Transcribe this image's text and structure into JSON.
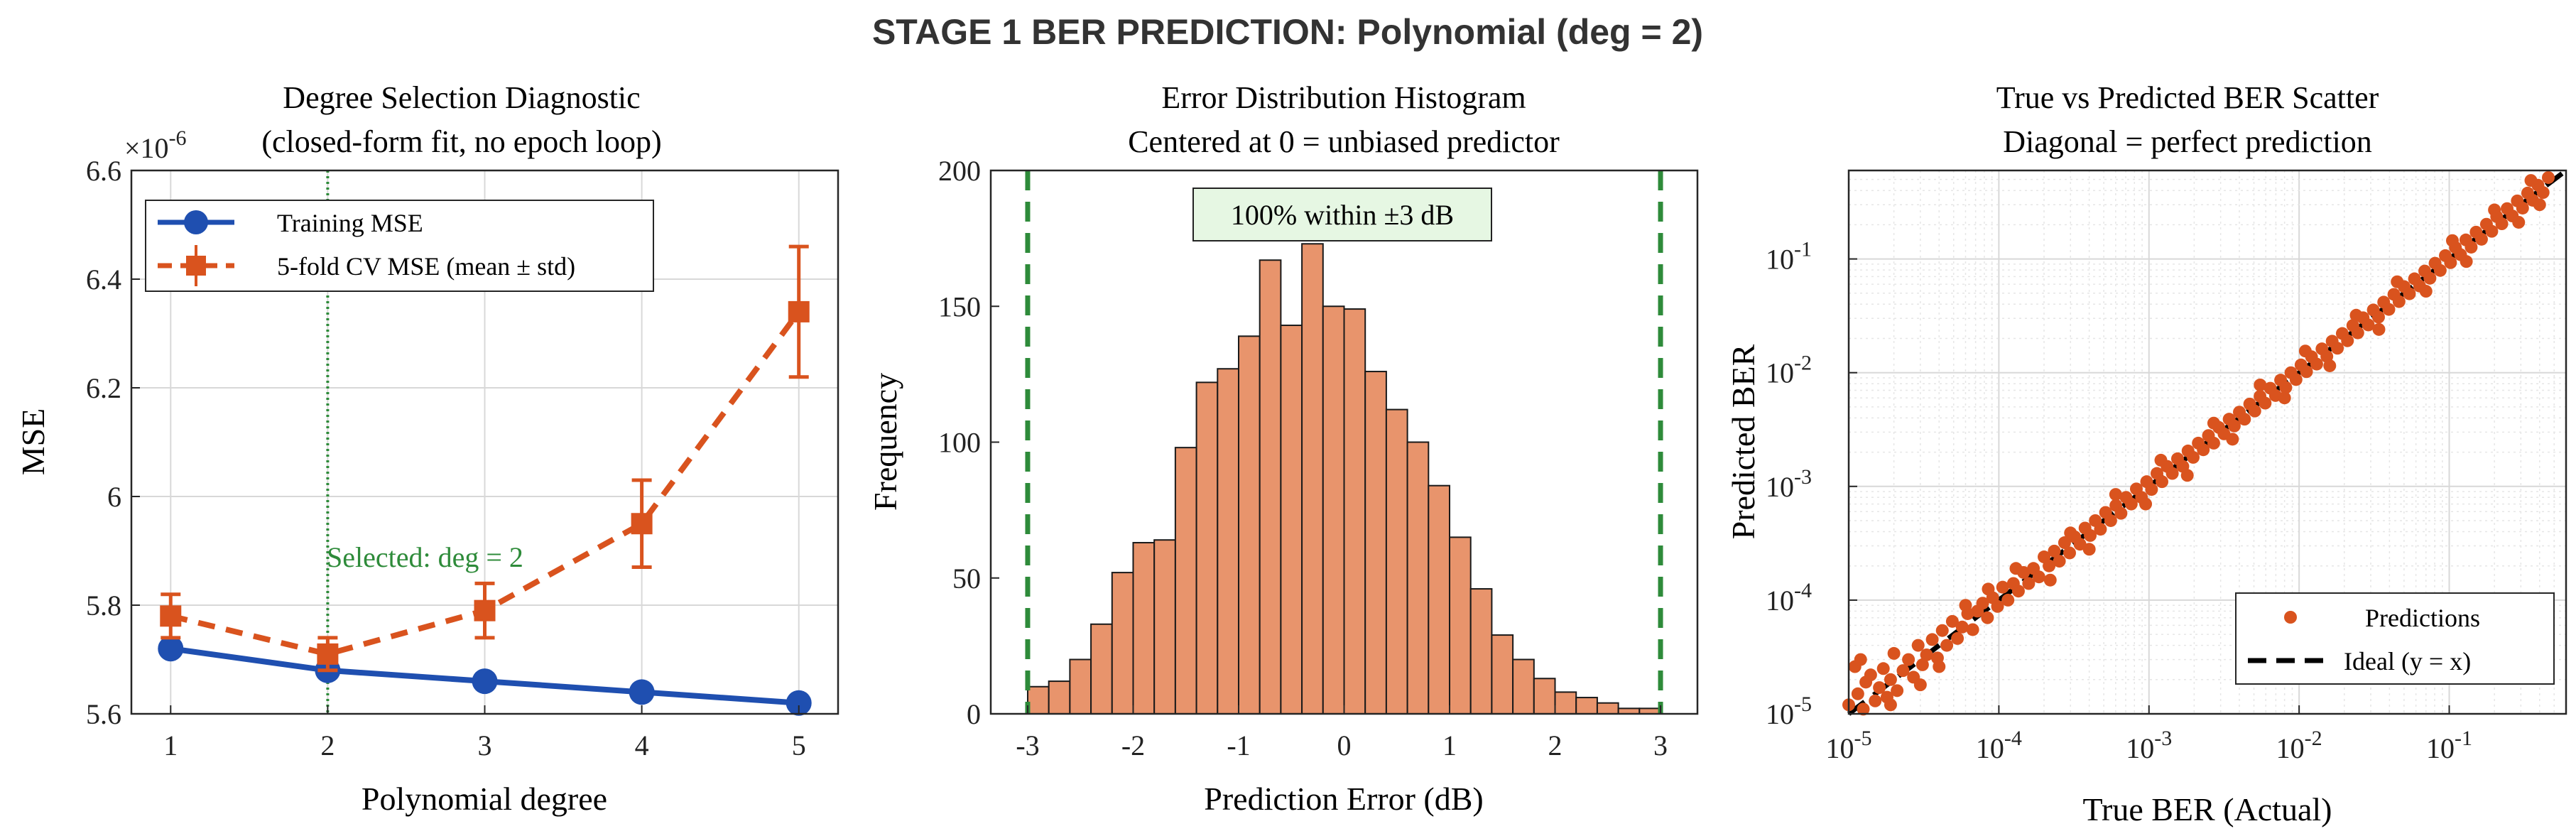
{
  "figure": {
    "suptitle": "STAGE 1 BER PREDICTION: Polynomial (deg = 2)"
  },
  "colors": {
    "blue": "#1f4fb0",
    "orange": "#d9531e",
    "green": "#2e8b3a",
    "hist_fill": "#e8946c",
    "annot_bg": "#e6f7e3"
  },
  "chart_data": [
    {
      "type": "line",
      "title_line1": "Degree Selection Diagnostic",
      "title_line2": "(closed-form fit, no epoch loop)",
      "xlabel": "Polynomial degree",
      "ylabel": "MSE",
      "exponent_label": "×10",
      "exponent_power": "-6",
      "xlim": [
        0.75,
        5.25
      ],
      "ylim": [
        5.6,
        6.6
      ],
      "xticks": [
        "1",
        "2",
        "3",
        "4",
        "5"
      ],
      "yticks": [
        "5.6",
        "5.8",
        "6",
        "6.2",
        "6.4",
        "6.6"
      ],
      "grid": true,
      "legend_position": "top-left",
      "series": [
        {
          "name": "Training MSE",
          "x": [
            1,
            2,
            3,
            4,
            5
          ],
          "values": [
            5.72,
            5.68,
            5.66,
            5.64,
            5.62
          ]
        },
        {
          "name": "5-fold CV MSE (mean ± std)",
          "x": [
            1,
            2,
            3,
            4,
            5
          ],
          "values": [
            5.78,
            5.71,
            5.79,
            5.95,
            6.34
          ],
          "std": [
            0.04,
            0.03,
            0.05,
            0.08,
            0.12
          ]
        }
      ],
      "selected_degree": 2,
      "selected_label": "Selected: deg = 2"
    },
    {
      "type": "bar",
      "title_line1": "Error Distribution Histogram",
      "title_line2": "Centered at 0 = unbiased predictor",
      "xlabel": "Prediction Error (dB)",
      "ylabel": "Frequency",
      "xlim": [
        -3.35,
        3.35
      ],
      "ylim": [
        0,
        200
      ],
      "xticks": [
        "-3",
        "-2",
        "-1",
        "0",
        "1",
        "2",
        "3"
      ],
      "yticks": [
        "0",
        "50",
        "100",
        "150",
        "200"
      ],
      "grid": false,
      "bin_edges_start": -3.0,
      "bin_width": 0.2,
      "values": [
        10,
        12,
        20,
        33,
        52,
        63,
        64,
        98,
        122,
        127,
        139,
        167,
        143,
        173,
        150,
        149,
        126,
        112,
        100,
        84,
        65,
        46,
        29,
        20,
        13,
        8,
        6,
        4,
        2,
        2
      ],
      "threshold_lines": [
        -3,
        3
      ],
      "annotation": "100% within ±3 dB"
    },
    {
      "type": "scatter",
      "title_line1": "True vs Predicted BER Scatter",
      "title_line2": "Diagonal = perfect prediction",
      "xlabel": "True BER (Actual)",
      "ylabel": "Predicted BER",
      "xscale": "log",
      "yscale": "log",
      "xlim": [
        1e-05,
        0.6
      ],
      "ylim": [
        1e-05,
        0.6
      ],
      "xticks": [
        {
          "base": "10",
          "exp": "-5"
        },
        {
          "base": "10",
          "exp": "-4"
        },
        {
          "base": "10",
          "exp": "-3"
        },
        {
          "base": "10",
          "exp": "-2"
        },
        {
          "base": "10",
          "exp": "-1"
        }
      ],
      "yticks": [
        {
          "base": "10",
          "exp": "-5"
        },
        {
          "base": "10",
          "exp": "-4"
        },
        {
          "base": "10",
          "exp": "-3"
        },
        {
          "base": "10",
          "exp": "-2"
        },
        {
          "base": "10",
          "exp": "-1"
        }
      ],
      "grid": true,
      "legend_position": "bottom-right",
      "series": [
        {
          "name": "Predictions",
          "points": [
            [
              1e-05,
              1.2e-05
            ],
            [
              1.1e-05,
              2.6e-05
            ],
            [
              1.15e-05,
              1.5e-05
            ],
            [
              1.25e-05,
              1.1e-05
            ],
            [
              1.3e-05,
              1.9e-05
            ],
            [
              1.4e-05,
              2.2e-05
            ],
            [
              1.5e-05,
              1.3e-05
            ],
            [
              1.6e-05,
              1.7e-05
            ],
            [
              1.7e-05,
              2.5e-05
            ],
            [
              1.8e-05,
              1.4e-05
            ],
            [
              1.9e-05,
              2e-05
            ],
            [
              2e-05,
              3.4e-05
            ],
            [
              2.1e-05,
              1.6e-05
            ],
            [
              2.3e-05,
              2.4e-05
            ],
            [
              2.5e-05,
              3e-05
            ],
            [
              2.7e-05,
              2.1e-05
            ],
            [
              2.9e-05,
              4e-05
            ],
            [
              3.1e-05,
              2.7e-05
            ],
            [
              3.3e-05,
              3.3e-05
            ],
            [
              3.6e-05,
              4.5e-05
            ],
            [
              3.9e-05,
              3.1e-05
            ],
            [
              4.2e-05,
              5.4e-05
            ],
            [
              4.5e-05,
              4e-05
            ],
            [
              4.9e-05,
              6.5e-05
            ],
            [
              5.3e-05,
              4.6e-05
            ],
            [
              5.7e-05,
              5.8e-05
            ],
            [
              6.2e-05,
              7.6e-05
            ],
            [
              6.7e-05,
              5.5e-05
            ],
            [
              7.2e-05,
              8e-05
            ],
            [
              7.8e-05,
              9.4e-05
            ],
            [
              8.4e-05,
              7e-05
            ],
            [
              9.1e-05,
              0.000105
            ],
            [
              9.8e-05,
              8.8e-05
            ],
            [
              0.000106,
              0.00013
            ],
            [
              0.000115,
              0.0001
            ],
            [
              0.000125,
              0.00014
            ],
            [
              0.000135,
              0.00012
            ],
            [
              0.000146,
              0.000175
            ],
            [
              0.000158,
              0.00014
            ],
            [
              0.00017,
              0.00019
            ],
            [
              0.000185,
              0.00016
            ],
            [
              0.0002,
              0.00024
            ],
            [
              0.000216,
              0.0002
            ],
            [
              0.000234,
              0.00027
            ],
            [
              0.000253,
              0.00022
            ],
            [
              0.000274,
              0.00032
            ],
            [
              0.000296,
              0.00026
            ],
            [
              0.00032,
              0.00036
            ],
            [
              0.000347,
              0.00031
            ],
            [
              0.000375,
              0.00043
            ],
            [
              0.000406,
              0.00037
            ],
            [
              0.000439,
              0.0005
            ],
            [
              0.000475,
              0.00042
            ],
            [
              0.000514,
              0.00059
            ],
            [
              0.000556,
              0.0005
            ],
            [
              0.000602,
              0.00068
            ],
            [
              0.000651,
              0.00058
            ],
            [
              0.000704,
              0.0008
            ],
            [
              0.000762,
              0.0007
            ],
            [
              0.000824,
              0.00095
            ],
            [
              0.000892,
              0.0008
            ],
            [
              0.000965,
              0.0011
            ],
            [
              0.00104,
              0.00094
            ],
            [
              0.00113,
              0.0013
            ],
            [
              0.00122,
              0.0011
            ],
            [
              0.00132,
              0.0015
            ],
            [
              0.00143,
              0.0013
            ],
            [
              0.00155,
              0.00175
            ],
            [
              0.00168,
              0.0015
            ],
            [
              0.00182,
              0.00205
            ],
            [
              0.00197,
              0.0018
            ],
            [
              0.00213,
              0.0024
            ],
            [
              0.0023,
              0.0021
            ],
            [
              0.00249,
              0.0028
            ],
            [
              0.0027,
              0.0024
            ],
            [
              0.00292,
              0.0033
            ],
            [
              0.00316,
              0.0029
            ],
            [
              0.00342,
              0.0039
            ],
            [
              0.0037,
              0.0034
            ],
            [
              0.004,
              0.0045
            ],
            [
              0.00433,
              0.0039
            ],
            [
              0.00469,
              0.0053
            ],
            [
              0.00507,
              0.0046
            ],
            [
              0.00549,
              0.0062
            ],
            [
              0.00594,
              0.0054
            ],
            [
              0.00643,
              0.0073
            ],
            [
              0.00696,
              0.0063
            ],
            [
              0.00753,
              0.0086
            ],
            [
              0.00815,
              0.0074
            ],
            [
              0.00882,
              0.01
            ],
            [
              0.00954,
              0.0087
            ],
            [
              0.0103,
              0.0117
            ],
            [
              0.0112,
              0.0102
            ],
            [
              0.0121,
              0.0138
            ],
            [
              0.0131,
              0.0119
            ],
            [
              0.0142,
              0.0162
            ],
            [
              0.0153,
              0.0139
            ],
            [
              0.0166,
              0.0189
            ],
            [
              0.018,
              0.0164
            ],
            [
              0.0194,
              0.0221
            ],
            [
              0.021,
              0.0191
            ],
            [
              0.0228,
              0.026
            ],
            [
              0.0246,
              0.0224
            ],
            [
              0.0267,
              0.0304
            ],
            [
              0.0289,
              0.0263
            ],
            [
              0.0312,
              0.0356
            ],
            [
              0.0338,
              0.0308
            ],
            [
              0.0366,
              0.0417
            ],
            [
              0.0396,
              0.036
            ],
            [
              0.0428,
              0.0488
            ],
            [
              0.0463,
              0.0422
            ],
            [
              0.0501,
              0.0571
            ],
            [
              0.0543,
              0.0494
            ],
            [
              0.0587,
              0.0669
            ],
            [
              0.0635,
              0.0578
            ],
            [
              0.0687,
              0.0783
            ],
            [
              0.0744,
              0.0677
            ],
            [
              0.0805,
              0.0917
            ],
            [
              0.0871,
              0.0793
            ],
            [
              0.0942,
              0.107
            ],
            [
              0.102,
              0.0928
            ],
            [
              0.11,
              0.126
            ],
            [
              0.119,
              0.109
            ],
            [
              0.129,
              0.147
            ],
            [
              0.14,
              0.127
            ],
            [
              0.151,
              0.172
            ],
            [
              0.164,
              0.149
            ],
            [
              0.177,
              0.202
            ],
            [
              0.192,
              0.175
            ],
            [
              0.207,
              0.236
            ],
            [
              0.224,
              0.204
            ],
            [
              0.243,
              0.277
            ],
            [
              0.263,
              0.239
            ],
            [
              0.284,
              0.324
            ],
            [
              0.308,
              0.28
            ],
            [
              0.333,
              0.38
            ],
            [
              0.36,
              0.328
            ],
            [
              0.39,
              0.445
            ],
            [
              0.422,
              0.384
            ],
            [
              0.457,
              0.52
            ],
            [
              3e-05,
              1.8e-05
            ],
            [
              6e-05,
              9e-05
            ],
            [
              0.00022,
              0.00015
            ],
            [
              0.0006,
              0.00085
            ],
            [
              0.0018,
              0.00125
            ],
            [
              0.0055,
              0.0078
            ],
            [
              0.016,
              0.0115
            ],
            [
              0.045,
              0.063
            ],
            [
              0.13,
              0.095
            ],
            [
              0.35,
              0.49
            ],
            [
              1.2e-05,
              3e-05
            ],
            [
              4e-05,
              2.6e-05
            ],
            [
              0.00013,
              0.00019
            ],
            [
              0.0004,
              0.00028
            ],
            [
              0.0012,
              0.0017
            ],
            [
              0.0036,
              0.0026
            ],
            [
              0.011,
              0.0155
            ],
            [
              0.034,
              0.024
            ],
            [
              0.105,
              0.145
            ],
            [
              0.29,
              0.21
            ],
            [
              1.9e-05,
              1.2e-05
            ],
            [
              8.5e-05,
              0.000125
            ],
            [
              0.0003,
              0.00039
            ],
            [
              0.00095,
              0.0007
            ],
            [
              0.0027,
              0.0036
            ],
            [
              0.008,
              0.006
            ],
            [
              0.024,
              0.032
            ],
            [
              0.07,
              0.052
            ],
            [
              0.2,
              0.27
            ],
            [
              0.4,
              0.3
            ]
          ]
        },
        {
          "name": "Ideal (y = x)",
          "style": "dashed"
        }
      ]
    }
  ]
}
